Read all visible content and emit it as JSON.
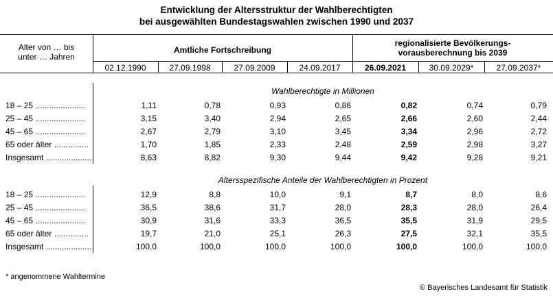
{
  "title": {
    "line1": "Entwicklung der Altersstruktur der Wahlberechtigten",
    "line2": "bei ausgewählten Bundestagswahlen zwischen 1990 und 2037"
  },
  "header": {
    "row_label": "Alter von … bis\nunter … Jahren",
    "group1": "Amtliche Fortschreibung",
    "group2": "regionalisierte Bevölkerungs-\nvorausberechnung bis 2039",
    "dates": [
      "02.12.1990",
      "27.09.1998",
      "27.09.2009",
      "24.09.2017",
      "26.09.2021",
      "30.09.2029*",
      "27.09.2037*"
    ]
  },
  "sections": [
    {
      "title": "Wahlberechtigte in Millionen",
      "rows": [
        {
          "label": "18 – 25 ......................",
          "values": [
            "1,11",
            "0,78",
            "0,93",
            "0,86",
            "0,82",
            "0,74",
            "0,79"
          ]
        },
        {
          "label": "25 – 45 ......................",
          "values": [
            "3,15",
            "3,40",
            "2,94",
            "2,65",
            "2,66",
            "2,60",
            "2,44"
          ]
        },
        {
          "label": "45 – 65 ......................",
          "values": [
            "2,67",
            "2,79",
            "3,10",
            "3,45",
            "3,34",
            "2,96",
            "2,72"
          ]
        },
        {
          "label": "65 oder älter ...............",
          "values": [
            "1,70",
            "1,85",
            "2,33",
            "2,48",
            "2,59",
            "2,98",
            "3,27"
          ]
        },
        {
          "label": "Insgesamt .....................",
          "values": [
            "8,63",
            "8,82",
            "9,30",
            "9,44",
            "9,42",
            "9,28",
            "9,21"
          ]
        }
      ]
    },
    {
      "title": "Altersspezifische Anteile der Wahlberechtigten in Prozent",
      "rows": [
        {
          "label": "18 – 25 ......................",
          "values": [
            "12,9",
            "8,8",
            "10,0",
            "9,1",
            "8,7",
            "8,0",
            "8,6"
          ]
        },
        {
          "label": "25 – 45 ......................",
          "values": [
            "36,5",
            "38,6",
            "31,7",
            "28,0",
            "28,3",
            "28,0",
            "26,4"
          ]
        },
        {
          "label": "45 – 65 ......................",
          "values": [
            "30,9",
            "31,6",
            "33,3",
            "36,5",
            "35,5",
            "31,9",
            "29,5"
          ]
        },
        {
          "label": "65 oder älter ...............",
          "values": [
            "19,7",
            "21,0",
            "25,1",
            "26,3",
            "27,5",
            "32,1",
            "35,5"
          ]
        },
        {
          "label": "Insgesamt .....................",
          "values": [
            "100,0",
            "100,0",
            "100,0",
            "100,0",
            "100,0",
            "100,0",
            "100,0"
          ]
        }
      ]
    }
  ],
  "footnote": "* angenommene Wahltermine",
  "copyright": "© Bayerisches Landesamt für Statistik"
}
